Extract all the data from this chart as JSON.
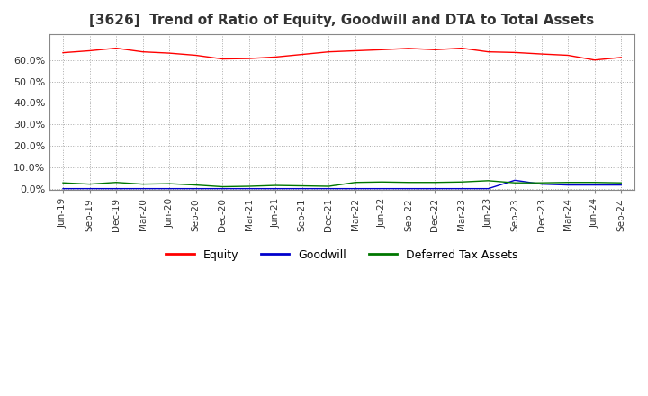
{
  "title": "[3626]  Trend of Ratio of Equity, Goodwill and DTA to Total Assets",
  "title_fontsize": 11,
  "ylim": [
    -0.005,
    0.72
  ],
  "ytick_values": [
    0.0,
    0.1,
    0.2,
    0.3,
    0.4,
    0.5,
    0.6
  ],
  "background_color": "#ffffff",
  "grid_color": "#aaaaaa",
  "x_labels": [
    "Jun-19",
    "Sep-19",
    "Dec-19",
    "Mar-20",
    "Jun-20",
    "Sep-20",
    "Dec-20",
    "Mar-21",
    "Jun-21",
    "Sep-21",
    "Dec-21",
    "Mar-22",
    "Jun-22",
    "Sep-22",
    "Dec-22",
    "Mar-23",
    "Jun-23",
    "Sep-23",
    "Dec-23",
    "Mar-24",
    "Jun-24",
    "Sep-24"
  ],
  "equity": [
    0.634,
    0.643,
    0.655,
    0.638,
    0.632,
    0.622,
    0.605,
    0.607,
    0.614,
    0.626,
    0.638,
    0.643,
    0.648,
    0.654,
    0.648,
    0.655,
    0.638,
    0.635,
    0.628,
    0.622,
    0.6,
    0.612
  ],
  "goodwill": [
    0.001,
    0.001,
    0.001,
    0.001,
    0.001,
    0.001,
    0.001,
    0.001,
    0.001,
    0.001,
    0.001,
    0.001,
    0.001,
    0.001,
    0.001,
    0.001,
    0.001,
    0.04,
    0.022,
    0.018,
    0.018,
    0.018
  ],
  "dta": [
    0.028,
    0.022,
    0.03,
    0.022,
    0.024,
    0.018,
    0.01,
    0.012,
    0.016,
    0.014,
    0.012,
    0.03,
    0.032,
    0.03,
    0.03,
    0.032,
    0.038,
    0.028,
    0.028,
    0.03,
    0.03,
    0.028
  ],
  "equity_color": "#ff0000",
  "goodwill_color": "#0000cc",
  "dta_color": "#007700",
  "legend_labels": [
    "Equity",
    "Goodwill",
    "Deferred Tax Assets"
  ]
}
